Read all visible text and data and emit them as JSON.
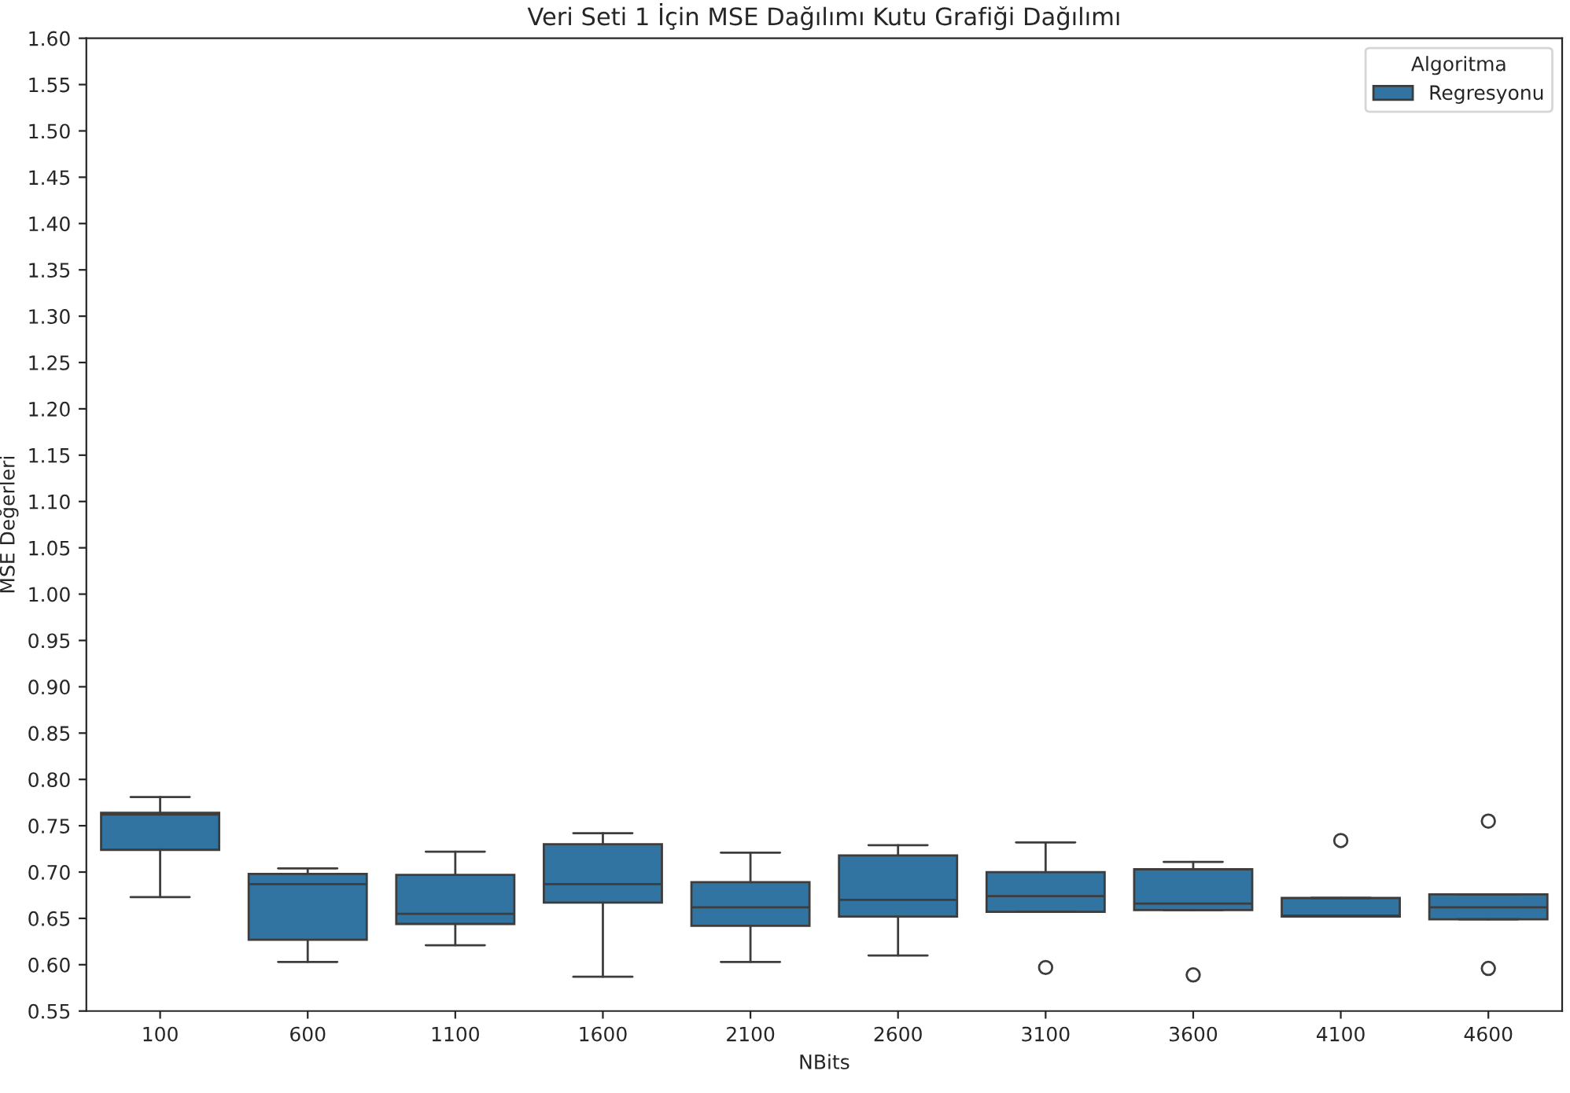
{
  "chart_data": {
    "type": "box",
    "title": "Veri Seti 1 İçin MSE Dağılımı Kutu Grafiği Dağılımı",
    "xlabel": "NBits",
    "ylabel": "MSE Değerleri",
    "legend_title": "Algoritma",
    "legend": "top right",
    "categories": [
      "100",
      "600",
      "1100",
      "1600",
      "2100",
      "2600",
      "3100",
      "3600",
      "4100",
      "4600"
    ],
    "ylim": [
      0.55,
      1.6
    ],
    "yticks": [
      {
        "value": 0.55,
        "label": "0.55"
      },
      {
        "value": 0.6,
        "label": "0.60"
      },
      {
        "value": 0.65,
        "label": "0.65"
      },
      {
        "value": 0.7,
        "label": "0.70"
      },
      {
        "value": 0.75,
        "label": "0.75"
      },
      {
        "value": 0.8,
        "label": "0.80"
      },
      {
        "value": 0.85,
        "label": "0.85"
      },
      {
        "value": 0.9,
        "label": "0.90"
      },
      {
        "value": 0.95,
        "label": "0.95"
      },
      {
        "value": 1.0,
        "label": "1.00"
      },
      {
        "value": 1.05,
        "label": "1.05"
      },
      {
        "value": 1.1,
        "label": "1.10"
      },
      {
        "value": 1.15,
        "label": "1.15"
      },
      {
        "value": 1.2,
        "label": "1.20"
      },
      {
        "value": 1.25,
        "label": "1.25"
      },
      {
        "value": 1.3,
        "label": "1.30"
      },
      {
        "value": 1.35,
        "label": "1.35"
      },
      {
        "value": 1.4,
        "label": "1.40"
      },
      {
        "value": 1.45,
        "label": "1.45"
      },
      {
        "value": 1.5,
        "label": "1.50"
      },
      {
        "value": 1.55,
        "label": "1.55"
      },
      {
        "value": 1.6,
        "label": "1.60"
      }
    ],
    "series": [
      {
        "name": "Regresyonu",
        "color": "#3274a1",
        "boxes": [
          {
            "low": 0.673,
            "q1": 0.724,
            "median": 0.762,
            "q3": 0.764,
            "high": 0.781
          },
          {
            "low": 0.603,
            "q1": 0.627,
            "median": 0.687,
            "q3": 0.698,
            "high": 0.704
          },
          {
            "low": 0.621,
            "q1": 0.644,
            "median": 0.655,
            "q3": 0.697,
            "high": 0.722
          },
          {
            "low": 0.587,
            "q1": 0.667,
            "median": 0.687,
            "q3": 0.73,
            "high": 0.742
          },
          {
            "low": 0.603,
            "q1": 0.642,
            "median": 0.662,
            "q3": 0.689,
            "high": 0.721
          },
          {
            "low": 0.61,
            "q1": 0.652,
            "median": 0.67,
            "q3": 0.718,
            "high": 0.729
          },
          {
            "low": 0.657,
            "q1": 0.657,
            "median": 0.674,
            "q3": 0.7,
            "high": 0.732,
            "outliers": [
              0.597
            ]
          },
          {
            "low": 0.659,
            "q1": 0.659,
            "median": 0.666,
            "q3": 0.703,
            "high": 0.711,
            "outliers": [
              0.589
            ]
          },
          {
            "low": 0.652,
            "q1": 0.652,
            "median": 0.653,
            "q3": 0.672,
            "high": 0.672,
            "outliers": [
              0.734
            ]
          },
          {
            "low": 0.649,
            "q1": 0.649,
            "median": 0.662,
            "q3": 0.676,
            "high": 0.676,
            "outliers": [
              0.755,
              0.596
            ]
          }
        ]
      }
    ]
  }
}
